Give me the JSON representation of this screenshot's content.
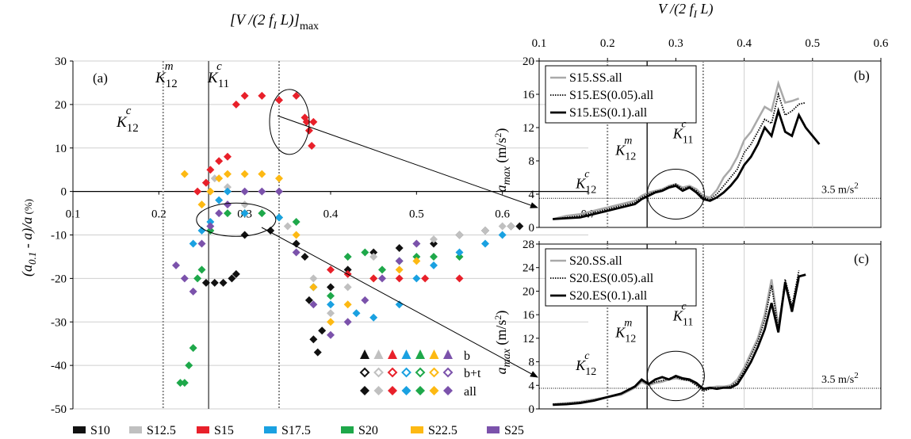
{
  "colors": {
    "S10": "#111111",
    "S12.5": "#c0c0c0",
    "S15": "#e8202a",
    "S17.5": "#1aa1e1",
    "S20": "#1ea84a",
    "S22.5": "#fdb913",
    "S25": "#7b52ab",
    "ss": "#a9a9a9",
    "es": "#000000",
    "grid": "#cfcfcf",
    "kline": "#8a8a8a"
  },
  "panel_a": {
    "label": "(a)",
    "top_axis_label": "[V /(2 f",
    "top_axis_sub": "I",
    "top_axis_after": " L)]",
    "top_axis_max": "max",
    "ylabel_main": "(a",
    "ylabel_sub": "0.1",
    "ylabel_rest": " - a)/a",
    "ylabel_unit": " (%)",
    "k12c": {
      "k": "K",
      "sub": "12",
      "sup": "c"
    },
    "k12m": {
      "k": "K",
      "sub": "12",
      "sup": "m"
    },
    "k11c": {
      "k": "K",
      "sub": "11",
      "sup": "c"
    },
    "marker_rows": [
      "b",
      "b+t",
      "all"
    ],
    "series_legend": [
      "S10",
      "S12.5",
      "S15",
      "S17.5",
      "S20",
      "S22.5",
      "S25"
    ]
  },
  "panel_b": {
    "label": "(b)",
    "top_axis_label": "V /(2 f",
    "top_axis_sub": "I",
    "top_axis_after": " L)",
    "ylabel": "a",
    "ylabel_sub": "max",
    "ylabel_unit": " (m/s",
    "ylabel_sup": "2",
    "ylabel_close": ")",
    "threshold_label": "3.5 m/s",
    "threshold_sup": "2",
    "legend": [
      "S15.SS.all",
      "S15.ES(0.05).all",
      "S15.ES(0.1).all"
    ]
  },
  "panel_c": {
    "label": "(c)",
    "ylabel": "a",
    "ylabel_sub": "max",
    "ylabel_unit": " (m/s",
    "ylabel_sup": "2",
    "ylabel_close": ")",
    "threshold_label": "3.5 m/s",
    "threshold_sup": "2",
    "legend": [
      "S20.SS.all",
      "S20.ES(0.05).all",
      "S20.ES(0.1).all"
    ]
  },
  "chart_data": [
    {
      "type": "scatter",
      "panel": "a",
      "xlim": [
        0.1,
        0.7
      ],
      "ylim": [
        -50,
        30
      ],
      "xticks": [
        "0.1",
        "0.2",
        "0.3",
        "0.4",
        "0.5",
        "0.6",
        "0.7"
      ],
      "yticks": [
        "30",
        "20",
        "10",
        "0",
        "-10",
        "-20",
        "-30",
        "-40",
        "-50"
      ],
      "vlines": [
        0.205,
        0.258,
        0.34
      ],
      "series": [
        {
          "name": "S10",
          "points": [
            [
              0.255,
              -21
            ],
            [
              0.265,
              -21
            ],
            [
              0.275,
              -21
            ],
            [
              0.285,
              -20
            ],
            [
              0.29,
              -19
            ],
            [
              0.3,
              -10
            ],
            [
              0.33,
              -9
            ],
            [
              0.36,
              -12
            ],
            [
              0.37,
              -15
            ],
            [
              0.375,
              -25
            ],
            [
              0.38,
              -34
            ],
            [
              0.385,
              -37
            ],
            [
              0.39,
              -32
            ],
            [
              0.4,
              -22
            ],
            [
              0.42,
              -18
            ],
            [
              0.45,
              -14
            ],
            [
              0.48,
              -13
            ],
            [
              0.52,
              -12
            ],
            [
              0.55,
              -10
            ],
            [
              0.58,
              -9
            ],
            [
              0.61,
              -8
            ],
            [
              0.62,
              -8
            ]
          ]
        },
        {
          "name": "S12.5",
          "points": [
            [
              0.255,
              2
            ],
            [
              0.265,
              3
            ],
            [
              0.28,
              1
            ],
            [
              0.3,
              -3
            ],
            [
              0.35,
              -8
            ],
            [
              0.38,
              -20
            ],
            [
              0.4,
              -28
            ],
            [
              0.42,
              -22
            ],
            [
              0.45,
              -15
            ],
            [
              0.5,
              -12
            ],
            [
              0.52,
              -11
            ],
            [
              0.55,
              -10
            ],
            [
              0.58,
              -9
            ],
            [
              0.6,
              -8
            ],
            [
              0.61,
              -8
            ]
          ]
        },
        {
          "name": "S15",
          "points": [
            [
              0.245,
              0
            ],
            [
              0.255,
              2
            ],
            [
              0.26,
              5
            ],
            [
              0.27,
              7
            ],
            [
              0.28,
              8
            ],
            [
              0.29,
              20
            ],
            [
              0.3,
              22
            ],
            [
              0.32,
              22
            ],
            [
              0.34,
              21
            ],
            [
              0.36,
              22
            ],
            [
              0.37,
              17
            ],
            [
              0.372,
              16
            ],
            [
              0.375,
              14
            ],
            [
              0.378,
              10.5
            ],
            [
              0.38,
              16
            ],
            [
              0.4,
              -18
            ],
            [
              0.42,
              -19
            ],
            [
              0.45,
              -20
            ],
            [
              0.48,
              -20
            ],
            [
              0.51,
              -20
            ],
            [
              0.55,
              -20
            ]
          ]
        },
        {
          "name": "S17.5",
          "points": [
            [
              0.24,
              -12
            ],
            [
              0.25,
              -9
            ],
            [
              0.26,
              -7
            ],
            [
              0.27,
              -2
            ],
            [
              0.28,
              0
            ],
            [
              0.3,
              -5
            ],
            [
              0.34,
              -6
            ],
            [
              0.38,
              -22
            ],
            [
              0.4,
              -26
            ],
            [
              0.43,
              -28
            ],
            [
              0.45,
              -29
            ],
            [
              0.48,
              -26
            ],
            [
              0.5,
              -20
            ],
            [
              0.52,
              -17
            ],
            [
              0.55,
              -14
            ],
            [
              0.58,
              -12
            ],
            [
              0.6,
              -10
            ]
          ]
        },
        {
          "name": "S20",
          "points": [
            [
              0.225,
              -44
            ],
            [
              0.23,
              -44
            ],
            [
              0.235,
              -40
            ],
            [
              0.24,
              -36
            ],
            [
              0.245,
              -20
            ],
            [
              0.25,
              -18
            ],
            [
              0.26,
              -9
            ],
            [
              0.28,
              -5
            ],
            [
              0.3,
              -5
            ],
            [
              0.32,
              -5
            ],
            [
              0.34,
              -6
            ],
            [
              0.36,
              -7
            ],
            [
              0.38,
              -22
            ],
            [
              0.4,
              -24
            ],
            [
              0.42,
              -15
            ],
            [
              0.44,
              -14
            ],
            [
              0.46,
              -18
            ],
            [
              0.48,
              -16
            ],
            [
              0.5,
              -15
            ],
            [
              0.52,
              -15
            ],
            [
              0.55,
              -15
            ]
          ]
        },
        {
          "name": "S22.5",
          "points": [
            [
              0.23,
              4
            ],
            [
              0.25,
              -3
            ],
            [
              0.26,
              0
            ],
            [
              0.27,
              3
            ],
            [
              0.28,
              4
            ],
            [
              0.3,
              4
            ],
            [
              0.32,
              4
            ],
            [
              0.34,
              3
            ],
            [
              0.36,
              -10
            ],
            [
              0.38,
              -22
            ],
            [
              0.4,
              -30
            ],
            [
              0.42,
              -26
            ],
            [
              0.45,
              -20
            ],
            [
              0.48,
              -18
            ],
            [
              0.5,
              -16
            ]
          ]
        },
        {
          "name": "S25",
          "points": [
            [
              0.22,
              -17
            ],
            [
              0.23,
              -20
            ],
            [
              0.24,
              -23
            ],
            [
              0.25,
              -12
            ],
            [
              0.26,
              -8
            ],
            [
              0.27,
              -5
            ],
            [
              0.28,
              -3
            ],
            [
              0.3,
              0
            ],
            [
              0.32,
              0
            ],
            [
              0.34,
              0
            ],
            [
              0.36,
              -14
            ],
            [
              0.38,
              -26
            ],
            [
              0.4,
              -33
            ],
            [
              0.42,
              -30
            ],
            [
              0.44,
              -25
            ],
            [
              0.46,
              -20
            ],
            [
              0.48,
              -16
            ],
            [
              0.5,
              -12
            ]
          ]
        }
      ]
    },
    {
      "type": "line",
      "panel": "b",
      "xlim": [
        0.1,
        0.6
      ],
      "ylim": [
        0,
        20
      ],
      "xticks": [
        "0.1",
        "0.2",
        "0.3",
        "0.4",
        "0.5",
        "0.6"
      ],
      "yticks": [
        "20",
        "16",
        "12",
        "8",
        "4",
        "0"
      ],
      "threshold": 3.5,
      "vlines": [
        0.2,
        0.258,
        0.34
      ],
      "series": [
        {
          "name": "S15.SS.all",
          "x": [
            0.12,
            0.14,
            0.16,
            0.18,
            0.2,
            0.22,
            0.24,
            0.25,
            0.26,
            0.27,
            0.28,
            0.29,
            0.3,
            0.31,
            0.32,
            0.33,
            0.34,
            0.35,
            0.36,
            0.37,
            0.38,
            0.39,
            0.4,
            0.41,
            0.42,
            0.43,
            0.44,
            0.45,
            0.46,
            0.47,
            0.48
          ],
          "y": [
            1.0,
            1.4,
            1.6,
            2.0,
            2.4,
            2.8,
            3.2,
            3.8,
            4.2,
            4.4,
            4.6,
            5.0,
            5.2,
            4.8,
            5.0,
            4.6,
            3.8,
            3.6,
            4.5,
            6.0,
            7.0,
            8.5,
            10.5,
            11.5,
            13.0,
            14.5,
            14.0,
            17.3,
            15.0,
            15.2,
            15.5
          ]
        },
        {
          "name": "S15.ES(0.05).all",
          "x": [
            0.12,
            0.14,
            0.16,
            0.18,
            0.2,
            0.22,
            0.24,
            0.25,
            0.26,
            0.27,
            0.28,
            0.29,
            0.3,
            0.31,
            0.32,
            0.33,
            0.34,
            0.35,
            0.36,
            0.37,
            0.38,
            0.39,
            0.4,
            0.41,
            0.42,
            0.43,
            0.44,
            0.45,
            0.46,
            0.47,
            0.48,
            0.49
          ],
          "y": [
            1.0,
            1.2,
            1.4,
            1.8,
            2.2,
            2.6,
            3.0,
            3.6,
            4.0,
            4.3,
            4.5,
            4.9,
            5.2,
            4.6,
            4.9,
            4.4,
            3.6,
            3.4,
            4.0,
            5.0,
            6.0,
            7.0,
            9.0,
            10.0,
            11.5,
            13.0,
            12.5,
            16.0,
            13.5,
            14.0,
            14.8,
            15.0
          ]
        },
        {
          "name": "S15.ES(0.1).all",
          "x": [
            0.12,
            0.14,
            0.16,
            0.18,
            0.2,
            0.22,
            0.24,
            0.25,
            0.26,
            0.27,
            0.28,
            0.29,
            0.3,
            0.31,
            0.32,
            0.33,
            0.34,
            0.35,
            0.36,
            0.37,
            0.38,
            0.39,
            0.4,
            0.41,
            0.42,
            0.43,
            0.44,
            0.45,
            0.46,
            0.47,
            0.48,
            0.49,
            0.5,
            0.51
          ],
          "y": [
            1.0,
            1.1,
            1.2,
            1.6,
            2.0,
            2.4,
            2.8,
            3.4,
            3.8,
            4.2,
            4.4,
            4.8,
            5.0,
            4.4,
            4.8,
            4.2,
            3.4,
            3.2,
            3.6,
            4.2,
            5.0,
            6.0,
            7.5,
            8.5,
            10.0,
            12.0,
            11.0,
            14.0,
            11.5,
            11.0,
            13.5,
            12.0,
            11.0,
            10.0
          ]
        }
      ]
    },
    {
      "type": "line",
      "panel": "c",
      "xlim": [
        0.1,
        0.6
      ],
      "ylim": [
        0,
        28
      ],
      "xticks": [
        "0.1",
        "0.2",
        "0.3",
        "0.4",
        "0.5",
        "0.6"
      ],
      "yticks": [
        "28",
        "24",
        "20",
        "16",
        "12",
        "8",
        "4",
        "0"
      ],
      "threshold": 3.5,
      "vlines": [
        0.2,
        0.258,
        0.34
      ],
      "series": [
        {
          "name": "S20.SS.all",
          "x": [
            0.12,
            0.14,
            0.16,
            0.18,
            0.2,
            0.22,
            0.24,
            0.25,
            0.26,
            0.27,
            0.28,
            0.29,
            0.3,
            0.31,
            0.32,
            0.33,
            0.34,
            0.35,
            0.36,
            0.37,
            0.38,
            0.39,
            0.4,
            0.41,
            0.42,
            0.43,
            0.44,
            0.45,
            0.46,
            0.47,
            0.48
          ],
          "y": [
            0.8,
            1.0,
            1.2,
            1.6,
            2.0,
            2.4,
            3.6,
            4.6,
            4.0,
            4.4,
            4.6,
            5.0,
            5.2,
            5.0,
            4.8,
            4.2,
            3.2,
            3.6,
            3.8,
            3.8,
            4.0,
            5.0,
            7.0,
            9.5,
            12.0,
            16.0,
            22.0,
            14.0,
            21.0,
            17.0,
            22.0
          ]
        },
        {
          "name": "S20.ES(0.05).all",
          "x": [
            0.12,
            0.14,
            0.16,
            0.18,
            0.2,
            0.22,
            0.24,
            0.25,
            0.26,
            0.27,
            0.28,
            0.29,
            0.3,
            0.31,
            0.32,
            0.33,
            0.34,
            0.35,
            0.36,
            0.37,
            0.38,
            0.39,
            0.4,
            0.41,
            0.42,
            0.43,
            0.44,
            0.45,
            0.46,
            0.47,
            0.48
          ],
          "y": [
            0.8,
            0.9,
            1.1,
            1.5,
            2.0,
            2.6,
            3.8,
            4.8,
            4.2,
            4.6,
            4.8,
            5.2,
            5.4,
            5.0,
            4.8,
            4.0,
            3.0,
            3.4,
            3.6,
            3.6,
            3.8,
            4.6,
            6.5,
            9.0,
            11.5,
            15.0,
            21.0,
            13.5,
            22.0,
            17.5,
            23.5
          ]
        },
        {
          "name": "S20.ES(0.1).all",
          "x": [
            0.12,
            0.14,
            0.16,
            0.18,
            0.2,
            0.22,
            0.24,
            0.25,
            0.26,
            0.27,
            0.28,
            0.29,
            0.3,
            0.31,
            0.32,
            0.33,
            0.34,
            0.35,
            0.36,
            0.37,
            0.38,
            0.39,
            0.4,
            0.41,
            0.42,
            0.43,
            0.44,
            0.45,
            0.46,
            0.47,
            0.48,
            0.49
          ],
          "y": [
            0.7,
            0.8,
            1.0,
            1.4,
            2.0,
            2.6,
            3.8,
            5.0,
            4.2,
            5.0,
            5.4,
            5.0,
            5.6,
            5.2,
            5.0,
            4.4,
            3.4,
            3.6,
            3.4,
            3.6,
            3.6,
            4.2,
            6.0,
            8.0,
            10.5,
            13.5,
            18.0,
            13.0,
            21.5,
            16.5,
            22.5,
            22.8
          ]
        }
      ]
    }
  ]
}
